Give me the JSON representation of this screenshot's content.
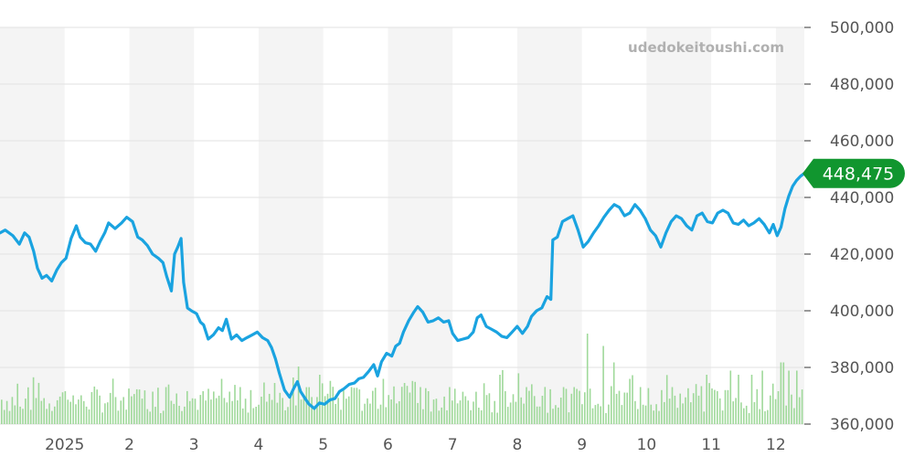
{
  "chart_data": {
    "type": "line",
    "watermark": "udedokeitoushi.com",
    "current_value_label": "448,475",
    "colors": {
      "line": "#1aa3e0",
      "volume": "#9fd99a",
      "badge": "#11962f",
      "band": "#f4f4f4",
      "grid": "#e2e2e2"
    },
    "ylim": [
      360000,
      500000
    ],
    "y_ticks": [
      {
        "value": 500000,
        "label": "500,000"
      },
      {
        "value": 480000,
        "label": "480,000"
      },
      {
        "value": 460000,
        "label": "460,000"
      },
      {
        "value": 440000,
        "label": "440,000"
      },
      {
        "value": 420000,
        "label": "420,000"
      },
      {
        "value": 400000,
        "label": "400,000"
      },
      {
        "value": 380000,
        "label": "380,000"
      },
      {
        "value": 360000,
        "label": "360,000"
      }
    ],
    "x_range": [
      0,
      12.44
    ],
    "x_ticks": [
      {
        "value": 1,
        "label": "2025"
      },
      {
        "value": 2,
        "label": "2"
      },
      {
        "value": 3,
        "label": "3"
      },
      {
        "value": 4,
        "label": "4"
      },
      {
        "value": 5,
        "label": "5"
      },
      {
        "value": 6,
        "label": "6"
      },
      {
        "value": 7,
        "label": "7"
      },
      {
        "value": 8,
        "label": "8"
      },
      {
        "value": 9,
        "label": "9"
      },
      {
        "value": 10,
        "label": "10"
      },
      {
        "value": 11,
        "label": "11"
      },
      {
        "value": 12,
        "label": "12"
      }
    ],
    "series": [
      {
        "values": [
          [
            0.0,
            427500
          ],
          [
            0.08,
            428500
          ],
          [
            0.2,
            426500
          ],
          [
            0.3,
            423500
          ],
          [
            0.38,
            427500
          ],
          [
            0.45,
            426000
          ],
          [
            0.52,
            421000
          ],
          [
            0.58,
            415000
          ],
          [
            0.65,
            411500
          ],
          [
            0.72,
            412500
          ],
          [
            0.8,
            410500
          ],
          [
            0.88,
            414500
          ],
          [
            0.95,
            417000
          ],
          [
            1.02,
            418500
          ],
          [
            1.1,
            425500
          ],
          [
            1.18,
            430000
          ],
          [
            1.24,
            426000
          ],
          [
            1.32,
            424000
          ],
          [
            1.4,
            423500
          ],
          [
            1.48,
            421000
          ],
          [
            1.55,
            424500
          ],
          [
            1.62,
            427500
          ],
          [
            1.68,
            431000
          ],
          [
            1.78,
            429000
          ],
          [
            1.88,
            431000
          ],
          [
            1.96,
            433000
          ],
          [
            2.05,
            431500
          ],
          [
            2.13,
            426000
          ],
          [
            2.2,
            425000
          ],
          [
            2.28,
            423000
          ],
          [
            2.36,
            420000
          ],
          [
            2.45,
            418500
          ],
          [
            2.52,
            417000
          ],
          [
            2.58,
            412000
          ],
          [
            2.65,
            407000
          ],
          [
            2.7,
            420000
          ],
          [
            2.75,
            422500
          ],
          [
            2.8,
            425500
          ],
          [
            2.84,
            410000
          ],
          [
            2.9,
            401000
          ],
          [
            2.96,
            400000
          ],
          [
            3.04,
            399000
          ],
          [
            3.1,
            396000
          ],
          [
            3.15,
            395000
          ],
          [
            3.22,
            390000
          ],
          [
            3.3,
            391500
          ],
          [
            3.38,
            394000
          ],
          [
            3.44,
            393000
          ],
          [
            3.5,
            397000
          ],
          [
            3.58,
            390000
          ],
          [
            3.66,
            391500
          ],
          [
            3.74,
            389500
          ],
          [
            3.82,
            390500
          ],
          [
            3.9,
            391500
          ],
          [
            3.98,
            392500
          ],
          [
            4.06,
            390500
          ],
          [
            4.14,
            389500
          ],
          [
            4.2,
            387000
          ],
          [
            4.26,
            383000
          ],
          [
            4.32,
            378000
          ],
          [
            4.4,
            372000
          ],
          [
            4.48,
            369500
          ],
          [
            4.54,
            372500
          ],
          [
            4.6,
            375000
          ],
          [
            4.65,
            371500
          ],
          [
            4.72,
            369000
          ],
          [
            4.78,
            367000
          ],
          [
            4.86,
            365500
          ],
          [
            4.94,
            367500
          ],
          [
            5.02,
            367000
          ],
          [
            5.1,
            368500
          ],
          [
            5.18,
            369000
          ],
          [
            5.25,
            371500
          ],
          [
            5.32,
            372500
          ],
          [
            5.4,
            374000
          ],
          [
            5.48,
            374500
          ],
          [
            5.55,
            376000
          ],
          [
            5.62,
            376500
          ],
          [
            5.7,
            378500
          ],
          [
            5.78,
            381000
          ],
          [
            5.84,
            377000
          ],
          [
            5.9,
            382000
          ],
          [
            5.98,
            385000
          ],
          [
            6.06,
            384000
          ],
          [
            6.12,
            387500
          ],
          [
            6.18,
            388500
          ],
          [
            6.24,
            392500
          ],
          [
            6.32,
            396500
          ],
          [
            6.4,
            399500
          ],
          [
            6.46,
            401500
          ],
          [
            6.54,
            399500
          ],
          [
            6.62,
            396000
          ],
          [
            6.7,
            396500
          ],
          [
            6.78,
            397500
          ],
          [
            6.86,
            396000
          ],
          [
            6.94,
            396500
          ],
          [
            7.0,
            392000
          ],
          [
            7.08,
            389500
          ],
          [
            7.16,
            390000
          ],
          [
            7.24,
            390500
          ],
          [
            7.32,
            392500
          ],
          [
            7.38,
            397500
          ],
          [
            7.44,
            398500
          ],
          [
            7.52,
            394500
          ],
          [
            7.6,
            393500
          ],
          [
            7.68,
            392500
          ],
          [
            7.76,
            391000
          ],
          [
            7.84,
            390500
          ],
          [
            7.92,
            392500
          ],
          [
            8.0,
            394500
          ],
          [
            8.08,
            392000
          ],
          [
            8.16,
            394500
          ],
          [
            8.22,
            398000
          ],
          [
            8.3,
            400000
          ],
          [
            8.38,
            401000
          ],
          [
            8.46,
            405000
          ],
          [
            8.52,
            404000
          ],
          [
            8.55,
            425000
          ],
          [
            8.62,
            426000
          ],
          [
            8.7,
            431500
          ],
          [
            8.78,
            432500
          ],
          [
            8.86,
            433500
          ],
          [
            8.94,
            428500
          ],
          [
            9.02,
            422500
          ],
          [
            9.1,
            424500
          ],
          [
            9.18,
            427500
          ],
          [
            9.26,
            430000
          ],
          [
            9.34,
            433000
          ],
          [
            9.42,
            435500
          ],
          [
            9.5,
            437500
          ],
          [
            9.58,
            436500
          ],
          [
            9.66,
            433500
          ],
          [
            9.74,
            434500
          ],
          [
            9.82,
            437500
          ],
          [
            9.9,
            435500
          ],
          [
            9.98,
            432500
          ],
          [
            10.06,
            428500
          ],
          [
            10.14,
            426500
          ],
          [
            10.22,
            422500
          ],
          [
            10.3,
            427500
          ],
          [
            10.38,
            431500
          ],
          [
            10.46,
            433500
          ],
          [
            10.54,
            432500
          ],
          [
            10.62,
            430000
          ],
          [
            10.7,
            428500
          ],
          [
            10.78,
            433500
          ],
          [
            10.86,
            434500
          ],
          [
            10.94,
            431500
          ],
          [
            11.02,
            431000
          ],
          [
            11.1,
            434500
          ],
          [
            11.18,
            435500
          ],
          [
            11.26,
            434500
          ],
          [
            11.34,
            431000
          ],
          [
            11.42,
            430500
          ],
          [
            11.5,
            432000
          ],
          [
            11.58,
            430000
          ],
          [
            11.66,
            431000
          ],
          [
            11.74,
            432500
          ],
          [
            11.82,
            430500
          ],
          [
            11.9,
            427500
          ],
          [
            11.96,
            430500
          ],
          [
            12.02,
            426500
          ],
          [
            12.08,
            429500
          ],
          [
            12.14,
            436000
          ],
          [
            12.2,
            440500
          ],
          [
            12.26,
            444000
          ],
          [
            12.32,
            446000
          ],
          [
            12.38,
            447500
          ],
          [
            12.44,
            448475
          ]
        ]
      }
    ],
    "volume_ylim": [
      360000,
      500000
    ]
  }
}
